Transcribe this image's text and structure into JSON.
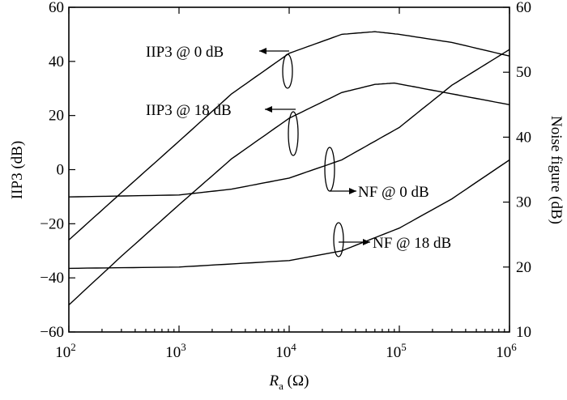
{
  "chart_data": {
    "type": "line",
    "title": "",
    "x_axis": {
      "label_main": "R",
      "label_sub": "a",
      "label_unit": " (Ω)",
      "scale": "log",
      "range": [
        100,
        1000000
      ],
      "ticks": [
        {
          "value": 100,
          "base": "10",
          "exp": "2"
        },
        {
          "value": 1000,
          "base": "10",
          "exp": "3"
        },
        {
          "value": 10000,
          "base": "10",
          "exp": "4"
        },
        {
          "value": 100000,
          "base": "10",
          "exp": "5"
        },
        {
          "value": 1000000,
          "base": "10",
          "exp": "6"
        }
      ]
    },
    "y_left": {
      "label": "IIP3 (dB)",
      "range": [
        -60,
        60
      ],
      "ticks": [
        "60",
        "40",
        "20",
        "0",
        "−20",
        "−40",
        "−60"
      ],
      "tick_values": [
        60,
        40,
        20,
        0,
        -20,
        -40,
        -60
      ]
    },
    "y_right": {
      "label": "Noise figure (dB)",
      "range": [
        10,
        60
      ],
      "ticks": [
        "60",
        "50",
        "40",
        "30",
        "20",
        "10"
      ],
      "tick_values": [
        60,
        50,
        40,
        30,
        20,
        10
      ]
    },
    "grid": false,
    "series": [
      {
        "name": "IIP3 @ 0 dB",
        "axis": "left",
        "x": [
          100,
          300,
          1000,
          3000,
          10000,
          30000,
          60000,
          100000,
          300000,
          1000000
        ],
        "y": [
          -26,
          -8.5,
          10.5,
          28,
          43,
          50,
          51,
          50,
          47,
          42
        ]
      },
      {
        "name": "IIP3 @ 18 dB",
        "axis": "left",
        "x": [
          100,
          300,
          1000,
          3000,
          10000,
          30000,
          60000,
          90000,
          300000,
          1000000
        ],
        "y": [
          -50,
          -32,
          -13,
          4,
          19,
          28.5,
          31.5,
          32,
          28,
          24
        ]
      },
      {
        "name": "NF @ 0 dB",
        "axis": "right",
        "x": [
          100,
          1000,
          3000,
          10000,
          30000,
          100000,
          300000,
          1000000
        ],
        "y": [
          30.8,
          31.1,
          32.0,
          33.7,
          36.5,
          41.5,
          48.0,
          53.5
        ]
      },
      {
        "name": "NF @ 18 dB",
        "axis": "right",
        "x": [
          100,
          1000,
          10000,
          30000,
          100000,
          300000,
          1000000
        ],
        "y": [
          19.8,
          20,
          21.0,
          22.5,
          26.0,
          30.5,
          36.5
        ]
      }
    ],
    "annotations": [
      {
        "text": "IIP3 @ 0 dB",
        "target": "IIP3 @ 0 dB"
      },
      {
        "text": "IIP3 @ 18 dB",
        "target": "IIP3 @ 18 dB"
      },
      {
        "text": "NF @ 0 dB",
        "target": "NF @ 0 dB"
      },
      {
        "text": "NF @ 18 dB",
        "target": "NF @ 18 dB"
      }
    ]
  }
}
